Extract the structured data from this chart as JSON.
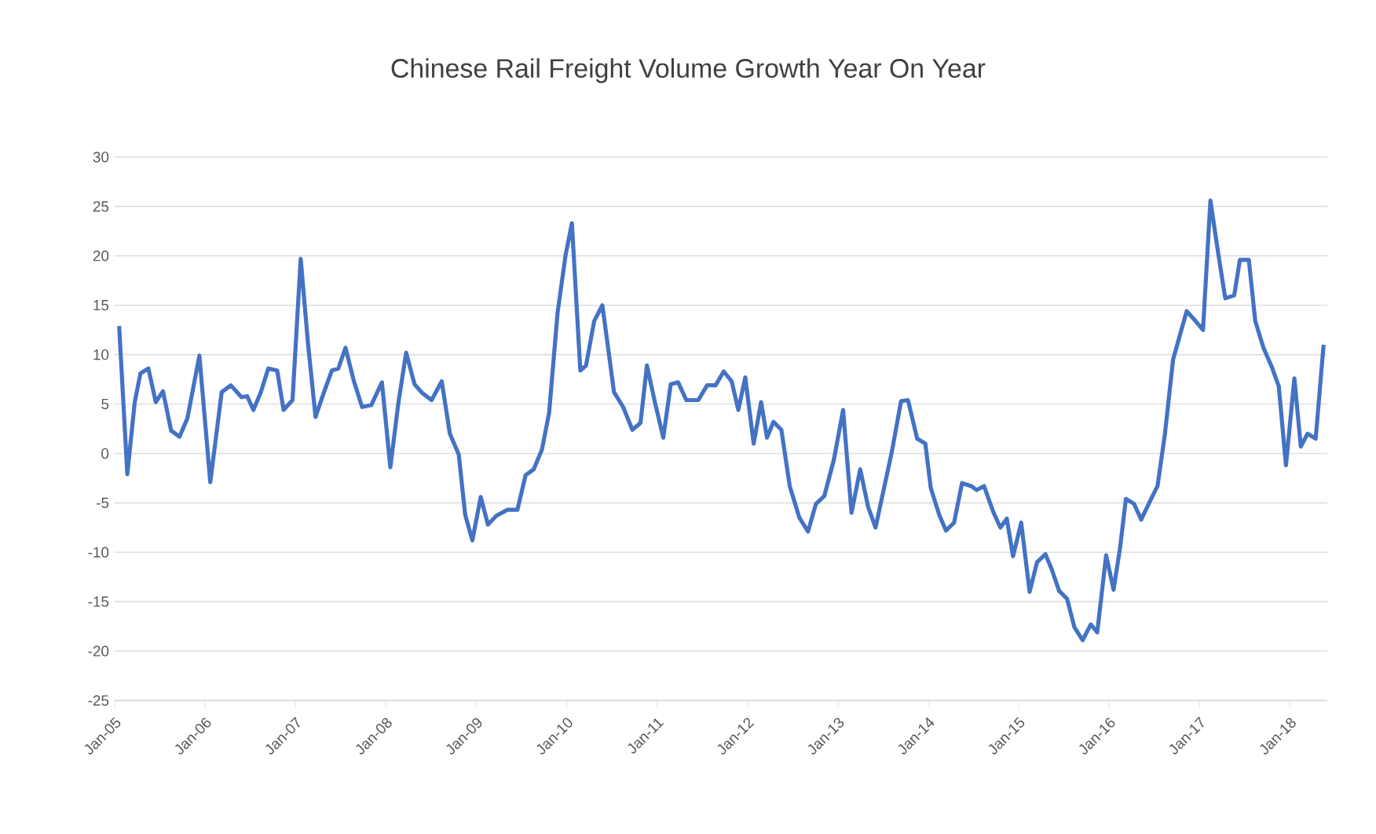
{
  "chart_data": {
    "type": "line",
    "title": "Chinese Rail Freight Volume Growth Year On Year",
    "x": [
      "2005-01-19",
      "2005-02-21",
      "2005-03-23",
      "2005-04-15",
      "2005-05-17",
      "2005-06-16",
      "2005-07-15",
      "2005-08-17",
      "2005-09-20",
      "2005-10-22",
      "2005-12-09",
      "2006-01-22",
      "2006-03-09",
      "2006-04-15",
      "2006-05-28",
      "2006-06-20",
      "2006-07-15",
      "2006-08-14",
      "2006-09-13",
      "2006-10-19",
      "2006-11-14",
      "2006-12-20",
      "2007-01-22",
      "2007-02-21",
      "2007-03-23",
      "2007-04-26",
      "2007-05-28",
      "2007-06-23",
      "2007-07-22",
      "2007-08-25",
      "2007-09-27",
      "2007-11-03",
      "2007-12-16",
      "2008-01-19",
      "2008-02-21",
      "2008-03-23",
      "2008-04-26",
      "2008-05-28",
      "2008-07-04",
      "2008-08-14",
      "2008-09-16",
      "2008-10-22",
      "2008-11-17",
      "2008-12-16",
      "2009-01-19",
      "2009-02-17",
      "2009-03-23",
      "2009-05-07",
      "2009-06-16",
      "2009-07-19",
      "2009-08-21",
      "2009-09-23",
      "2009-10-22",
      "2009-11-25",
      "2009-12-27",
      "2010-01-22",
      "2010-02-25",
      "2010-03-20",
      "2010-04-22",
      "2010-05-25",
      "2010-07-11",
      "2010-08-17",
      "2010-09-23",
      "2010-10-26",
      "2010-11-21",
      "2010-12-23",
      "2011-01-26",
      "2011-02-25",
      "2011-03-27",
      "2011-04-29",
      "2011-06-16",
      "2011-07-22",
      "2011-08-25",
      "2011-09-27",
      "2011-10-29",
      "2011-11-25",
      "2011-12-23",
      "2012-01-26",
      "2012-02-25",
      "2012-03-20",
      "2012-04-15",
      "2012-05-17",
      "2012-06-20",
      "2012-07-29",
      "2012-09-02",
      "2012-10-04",
      "2012-11-07",
      "2012-12-16",
      "2013-01-22",
      "2013-02-25",
      "2013-04-01",
      "2013-05-03",
      "2013-06-02",
      "2013-07-08",
      "2013-08-07",
      "2013-09-13",
      "2013-10-11",
      "2013-11-17",
      "2013-12-20",
      "2014-01-11",
      "2014-02-14",
      "2014-03-13",
      "2014-04-15",
      "2014-05-17",
      "2014-06-23",
      "2014-07-15",
      "2014-08-14",
      "2014-09-20",
      "2014-10-19",
      "2014-11-14",
      "2014-12-09",
      "2015-01-11",
      "2015-02-14",
      "2015-03-16",
      "2015-04-19",
      "2015-05-14",
      "2015-06-13",
      "2015-07-15",
      "2015-08-14",
      "2015-09-16",
      "2015-10-19",
      "2015-11-14",
      "2015-12-20",
      "2016-01-19",
      "2016-02-14",
      "2016-03-09",
      "2016-04-11",
      "2016-05-10",
      "2016-06-13",
      "2016-07-15",
      "2016-08-14",
      "2016-09-16",
      "2016-09-27",
      "2016-11-10",
      "2016-12-16",
      "2017-01-15",
      "2017-02-14",
      "2017-03-16",
      "2017-04-15",
      "2017-05-21",
      "2017-06-13",
      "2017-07-19",
      "2017-08-14",
      "2017-09-16",
      "2017-10-19",
      "2017-11-17",
      "2017-12-16",
      "2018-01-19",
      "2018-02-14",
      "2018-03-13",
      "2018-04-15",
      "2018-05-17"
    ],
    "series": [
      {
        "color": "#4472c4",
        "values": [
          12.9,
          -2.1,
          5.2,
          8.1,
          8.6,
          5.2,
          6.3,
          2.3,
          1.7,
          3.6,
          9.9,
          -2.9,
          6.2,
          6.9,
          5.7,
          5.8,
          4.4,
          6.2,
          8.6,
          8.4,
          4.4,
          5.4,
          19.7,
          11.0,
          3.7,
          6.2,
          8.4,
          8.6,
          10.7,
          7.3,
          4.7,
          4.9,
          7.2,
          -1.4,
          5.2,
          10.2,
          7.0,
          6.1,
          5.4,
          7.3,
          2.0,
          -0.1,
          -6.2,
          -8.8,
          -4.4,
          -7.2,
          -6.3,
          -5.7,
          -5.7,
          -2.2,
          -1.6,
          0.4,
          4.1,
          14.2,
          20.0,
          23.3,
          8.4,
          8.9,
          13.4,
          15.0,
          6.2,
          4.7,
          2.4,
          3.1,
          8.9,
          5.2,
          1.6,
          7.0,
          7.2,
          5.4,
          5.4,
          6.9,
          6.9,
          8.3,
          7.3,
          4.4,
          7.7,
          1.0,
          5.2,
          1.6,
          3.2,
          2.4,
          -3.3,
          -6.5,
          -7.9,
          -5.1,
          -4.3,
          -0.6,
          4.4,
          -6.0,
          -1.6,
          -5.4,
          -7.5,
          -3.3,
          0.2,
          5.3,
          5.4,
          1.5,
          1.0,
          -3.5,
          -6.2,
          -7.8,
          -7.0,
          -3.0,
          -3.3,
          -3.7,
          -3.3,
          -5.9,
          -7.5,
          -6.6,
          -10.4,
          -7.0,
          -14.0,
          -11.0,
          -10.2,
          -11.7,
          -13.9,
          -14.7,
          -17.6,
          -18.9,
          -17.3,
          -18.1,
          -10.3,
          -13.8,
          -9.6,
          -4.6,
          -5.1,
          -6.7,
          -4.9,
          -3.3,
          2.0,
          9.5,
          10.5,
          14.4,
          13.4,
          12.5,
          25.6,
          20.5,
          15.7,
          16.0,
          19.6,
          19.6,
          13.4,
          10.7,
          8.8,
          6.8,
          -1.2,
          7.6,
          0.7,
          2.0,
          1.5,
          11.0
        ]
      }
    ],
    "xlim": [
      "2005-01",
      "2018-06"
    ],
    "ylim": [
      -25,
      30
    ],
    "xticks": [
      {
        "value": "2005-01",
        "label": "Jan-05"
      },
      {
        "value": "2006-01",
        "label": "Jan-06"
      },
      {
        "value": "2007-01",
        "label": "Jan-07"
      },
      {
        "value": "2008-01",
        "label": "Jan-08"
      },
      {
        "value": "2009-01",
        "label": "Jan-09"
      },
      {
        "value": "2010-01",
        "label": "Jan-10"
      },
      {
        "value": "2011-01",
        "label": "Jan-11"
      },
      {
        "value": "2012-01",
        "label": "Jan-12"
      },
      {
        "value": "2013-01",
        "label": "Jan-13"
      },
      {
        "value": "2014-01",
        "label": "Jan-14"
      },
      {
        "value": "2015-01",
        "label": "Jan-15"
      },
      {
        "value": "2016-01",
        "label": "Jan-16"
      },
      {
        "value": "2017-01",
        "label": "Jan-17"
      },
      {
        "value": "2018-01",
        "label": "Jan-18"
      }
    ],
    "yticks": [
      -25,
      -20,
      -15,
      -10,
      -5,
      0,
      5,
      10,
      15,
      20,
      25,
      30
    ],
    "grid": "y",
    "marker": "none",
    "line_style": "solid"
  }
}
